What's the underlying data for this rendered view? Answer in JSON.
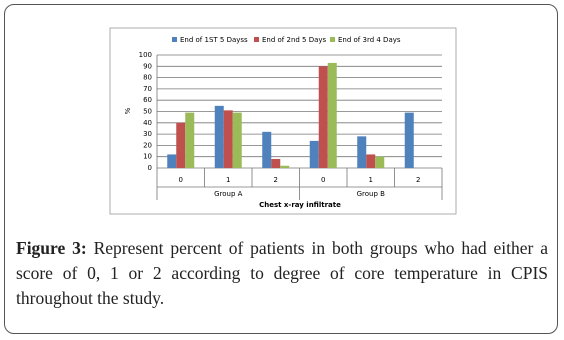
{
  "chart_data": {
    "type": "bar",
    "y_label": "%",
    "x_label": "Chest x-ray infiltrate",
    "categories": [
      "0",
      "1",
      "2",
      "0",
      "1",
      "2"
    ],
    "groups": [
      "Group A",
      "Group B"
    ],
    "series": [
      {
        "name": "End of 1ST 5 Dayss",
        "color": "#4f81bd",
        "values": [
          12,
          55,
          32,
          24,
          28,
          49
        ]
      },
      {
        "name": "End of 2nd 5 Days",
        "color": "#c0504d",
        "values": [
          40,
          51,
          8,
          90,
          12,
          0
        ]
      },
      {
        "name": "End of 3rd 4 Days",
        "color": "#9bbb59",
        "values": [
          49,
          49,
          2,
          93,
          10,
          0
        ]
      }
    ],
    "ylim": [
      0,
      100
    ],
    "yticks": [
      0,
      10,
      20,
      30,
      40,
      50,
      60,
      70,
      80,
      90,
      100
    ],
    "grid": true,
    "legend": "top"
  },
  "caption": {
    "label": "Figure 3:",
    "text": "Represent percent of patients in both groups who had either a score of 0, 1 or 2 according to degree of core temperature in CPIS throughout the study."
  }
}
